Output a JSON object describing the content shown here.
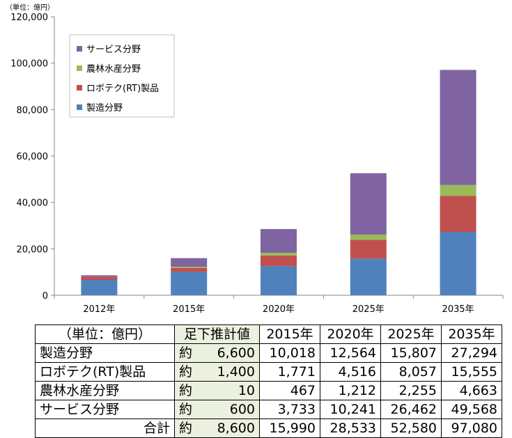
{
  "unit_label": "（単位：億円）",
  "colors": {
    "manufacturing": "#4f81bd",
    "robot": "#c0504d",
    "agri": "#9bbb59",
    "service": "#8064a2",
    "current_cell_bg": "#ebf1de"
  },
  "chart_data": {
    "type": "bar",
    "stacked": true,
    "categories": [
      "2012年",
      "2015年",
      "2020年",
      "2025年",
      "2035年"
    ],
    "series": [
      {
        "name": "製造分野",
        "color": "#4f81bd",
        "values": [
          6600,
          10018,
          12564,
          15807,
          27294
        ]
      },
      {
        "name": "ロボテク(RT)製品",
        "color": "#c0504d",
        "values": [
          1400,
          1771,
          4516,
          8057,
          15555
        ]
      },
      {
        "name": "農林水産分野",
        "color": "#9bbb59",
        "values": [
          10,
          467,
          1212,
          2255,
          4663
        ]
      },
      {
        "name": "サービス分野",
        "color": "#8064a2",
        "values": [
          600,
          3733,
          10241,
          26462,
          49568
        ]
      }
    ],
    "legend_order": [
      "サービス分野",
      "農林水産分野",
      "ロボテク(RT)製品",
      "製造分野"
    ],
    "legend_position": "top-left",
    "ylim": [
      0,
      120000
    ],
    "yticks": [
      0,
      20000,
      40000,
      60000,
      80000,
      100000,
      120000
    ],
    "ytick_labels": [
      "0",
      "20,000",
      "40,000",
      "60,000",
      "80,000",
      "100,000",
      "120,000"
    ],
    "grid": false
  },
  "table": {
    "header": [
      "（単位：億円）",
      "足下推計値",
      "2015年",
      "2020年",
      "2025年",
      "2035年"
    ],
    "rows": [
      {
        "label": "製造分野",
        "approx": "約",
        "current": "6,600",
        "values": [
          "10,018",
          "12,564",
          "15,807",
          "27,294"
        ]
      },
      {
        "label": "ロボテク(RT)製品",
        "approx": "約",
        "current": "1,400",
        "values": [
          "1,771",
          "4,516",
          "8,057",
          "15,555"
        ]
      },
      {
        "label": "農林水産分野",
        "approx": "約",
        "current": "10",
        "values": [
          "467",
          "1,212",
          "2,255",
          "4,663"
        ]
      },
      {
        "label": "サービス分野",
        "approx": "約",
        "current": "600",
        "values": [
          "3,733",
          "10,241",
          "26,462",
          "49,568"
        ]
      },
      {
        "label": "合計",
        "approx": "約",
        "current": "8,600",
        "values": [
          "15,990",
          "28,533",
          "52,580",
          "97,080"
        ],
        "total": true
      }
    ]
  }
}
